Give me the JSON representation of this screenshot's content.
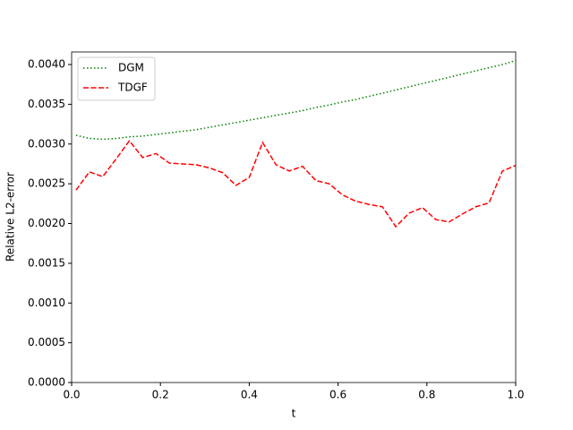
{
  "chart_data": {
    "type": "line",
    "xlabel": "t",
    "ylabel": "Relative L2-error",
    "x": [
      0.01,
      0.04,
      0.07,
      0.1,
      0.13,
      0.16,
      0.19,
      0.22,
      0.25,
      0.28,
      0.31,
      0.34,
      0.37,
      0.4,
      0.43,
      0.46,
      0.49,
      0.52,
      0.55,
      0.58,
      0.61,
      0.64,
      0.67,
      0.7,
      0.73,
      0.76,
      0.79,
      0.82,
      0.85,
      0.88,
      0.91,
      0.94,
      0.97,
      1.0
    ],
    "series": [
      {
        "name": "DGM",
        "color": "green",
        "style": "dotted",
        "values": [
          0.00311,
          0.00307,
          0.00306,
          0.00307,
          0.00309,
          0.0031,
          0.00312,
          0.00314,
          0.00316,
          0.00318,
          0.00321,
          0.00324,
          0.00327,
          0.0033,
          0.00333,
          0.00336,
          0.00339,
          0.00342,
          0.00346,
          0.00349,
          0.00353,
          0.00356,
          0.0036,
          0.00364,
          0.00368,
          0.00372,
          0.00376,
          0.0038,
          0.00384,
          0.00388,
          0.00392,
          0.00396,
          0.004,
          0.00405
        ]
      },
      {
        "name": "TDGF",
        "color": "red",
        "style": "dashed",
        "values": [
          0.00242,
          0.00265,
          0.00259,
          0.00281,
          0.00304,
          0.00283,
          0.00288,
          0.00276,
          0.00275,
          0.00274,
          0.0027,
          0.00264,
          0.00248,
          0.00258,
          0.00302,
          0.00274,
          0.00266,
          0.00272,
          0.00254,
          0.0025,
          0.00236,
          0.00228,
          0.00224,
          0.00221,
          0.00196,
          0.00213,
          0.0022,
          0.00205,
          0.00202,
          0.00212,
          0.00221,
          0.00226,
          0.00266,
          0.00273
        ]
      }
    ],
    "xlim": [
      0,
      1
    ],
    "ylim": [
      0,
      0.004158
    ],
    "xticks": [
      {
        "value": 0,
        "label": "0.0"
      },
      {
        "value": 0.2,
        "label": "0.2"
      },
      {
        "value": 0.4,
        "label": "0.4"
      },
      {
        "value": 0.6,
        "label": "0.6"
      },
      {
        "value": 0.8,
        "label": "0.8"
      },
      {
        "value": 1,
        "label": "1.0"
      }
    ],
    "yticks": [
      {
        "value": 0,
        "label": "0.0000"
      },
      {
        "value": 0.0005,
        "label": "0.0005"
      },
      {
        "value": 0.001,
        "label": "0.0010"
      },
      {
        "value": 0.0015,
        "label": "0.0015"
      },
      {
        "value": 0.002,
        "label": "0.0020"
      },
      {
        "value": 0.0025,
        "label": "0.0025"
      },
      {
        "value": 0.003,
        "label": "0.0030"
      },
      {
        "value": 0.0035,
        "label": "0.0035"
      },
      {
        "value": 0.004,
        "label": "0.0040"
      }
    ],
    "legend": "upper left"
  }
}
